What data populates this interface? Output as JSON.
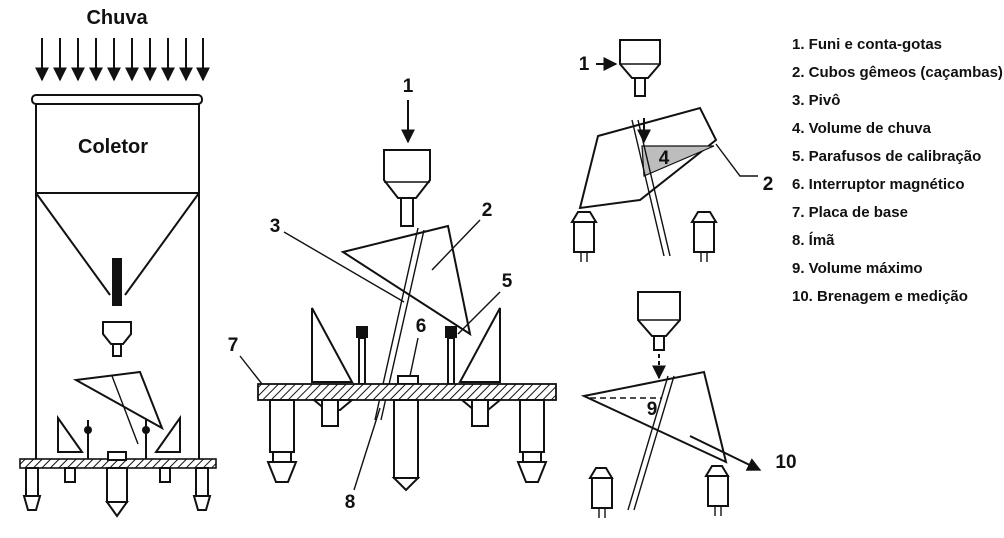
{
  "diagram": {
    "rain_label": "Chuva",
    "collector_label": "Coletor",
    "callouts": {
      "n1": "1",
      "n2": "2",
      "n3": "3",
      "n5": "5",
      "n6": "6",
      "n7": "7",
      "n8": "8",
      "r1": "1",
      "r2": "2",
      "r4": "4",
      "r9": "9",
      "r10": "10"
    }
  },
  "legend": {
    "items": [
      "1. Funi e conta-gotas",
      "2. Cubos gêmeos (caçambas)",
      "3. Pivô",
      "4. Volume de chuva",
      "5. Parafusos de calibração",
      "6. Interruptor magnético",
      "7. Placa de base",
      "8. Ímã",
      "9. Volume máximo",
      "10. Brenagem e medição"
    ]
  }
}
